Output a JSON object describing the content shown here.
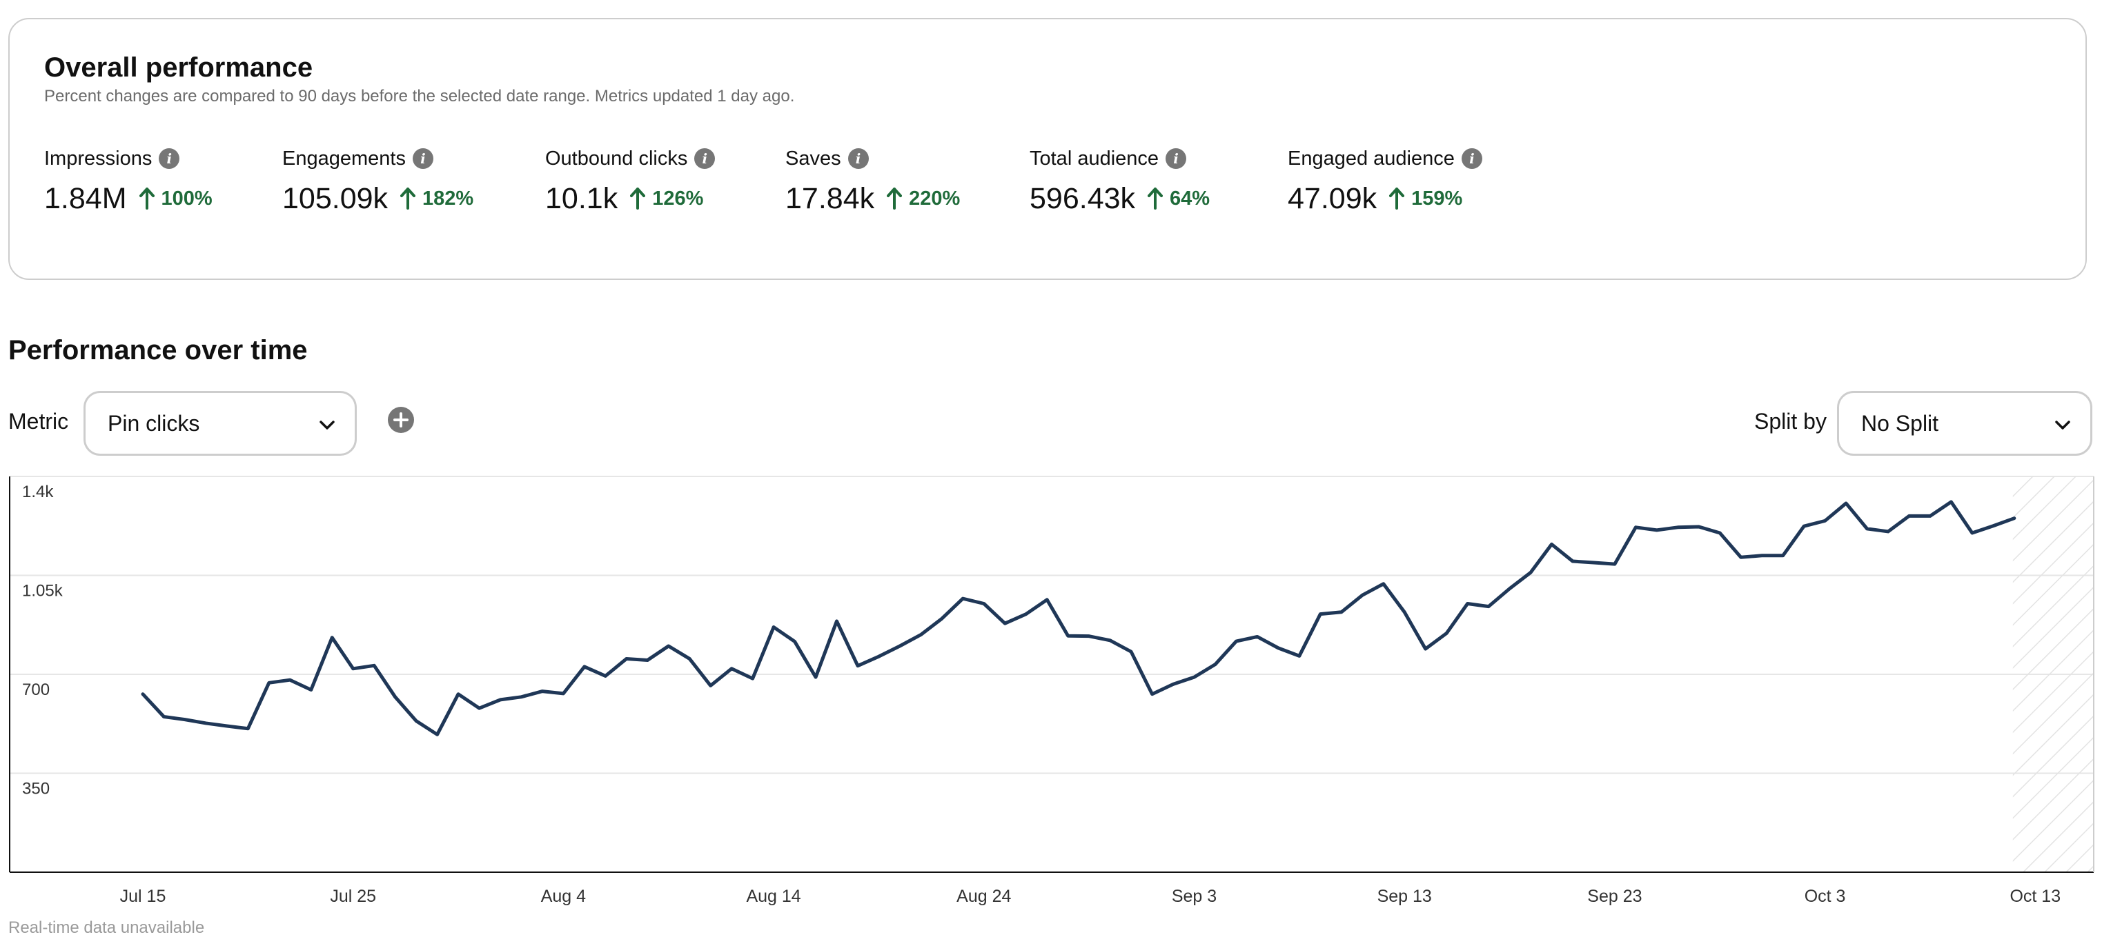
{
  "overall": {
    "title": "Overall performance",
    "subtitle": "Percent changes are compared to 90 days before the selected date range. Metrics updated 1 day ago.",
    "metrics": [
      {
        "label": "Impressions",
        "value": "1.84M",
        "change": "100%"
      },
      {
        "label": "Engagements",
        "value": "105.09k",
        "change": "182%"
      },
      {
        "label": "Outbound clicks",
        "value": "10.1k",
        "change": "126%"
      },
      {
        "label": "Saves",
        "value": "17.84k",
        "change": "220%"
      },
      {
        "label": "Total audience",
        "value": "596.43k",
        "change": "64%"
      },
      {
        "label": "Engaged audience",
        "value": "47.09k",
        "change": "159%"
      }
    ]
  },
  "performance": {
    "title": "Performance over time",
    "metric_label": "Metric",
    "metric_value": "Pin clicks",
    "split_label": "Split by",
    "split_value": "No Split"
  },
  "footer": {
    "note": "Real-time data unavailable"
  },
  "colors": {
    "line": "#1f3757",
    "positive": "#1f6b3a",
    "grid": "#e6e6e6",
    "axis": "#111111"
  },
  "chart_data": {
    "type": "line",
    "title": "",
    "series_name": "Pin clicks",
    "xlabel": "",
    "ylabel": "",
    "ylim": [
      0,
      1400
    ],
    "y_ticks": [
      350,
      700,
      1050,
      1400
    ],
    "y_tick_labels": [
      "350",
      "700",
      "1.05k",
      "1.4k"
    ],
    "x_tick_labels": [
      "Jul 15",
      "Jul 25",
      "Aug 4",
      "Aug 14",
      "Aug 24",
      "Sep 3",
      "Sep 13",
      "Sep 23",
      "Oct 3",
      "Oct 13"
    ],
    "x_tick_days": [
      0,
      10,
      20,
      30,
      40,
      50,
      60,
      70,
      80,
      90
    ],
    "x_range_days": [
      0,
      90
    ],
    "unavailable_from_day": 89,
    "start_date": "Jul 15",
    "values": [
      630,
      550,
      540,
      527,
      517,
      508,
      670,
      680,
      645,
      830,
      720,
      731,
      620,
      535,
      487,
      630,
      580,
      610,
      620,
      640,
      632,
      727,
      694,
      755,
      750,
      800,
      755,
      660,
      720,
      685,
      867,
      816,
      690,
      888,
      730,
      763,
      800,
      840,
      897,
      968,
      950,
      880,
      913,
      964,
      836,
      835,
      820,
      780,
      630,
      665,
      690,
      735,
      817,
      833,
      793,
      765,
      913,
      920,
      980,
      1020,
      920,
      790,
      845,
      950,
      940,
      1003,
      1060,
      1160,
      1100,
      1095,
      1090,
      1220,
      1210,
      1220,
      1222,
      1200,
      1114,
      1120,
      1120,
      1224,
      1243,
      1305,
      1215,
      1205,
      1260,
      1260,
      1310,
      1200,
      1225,
      1252
    ]
  }
}
